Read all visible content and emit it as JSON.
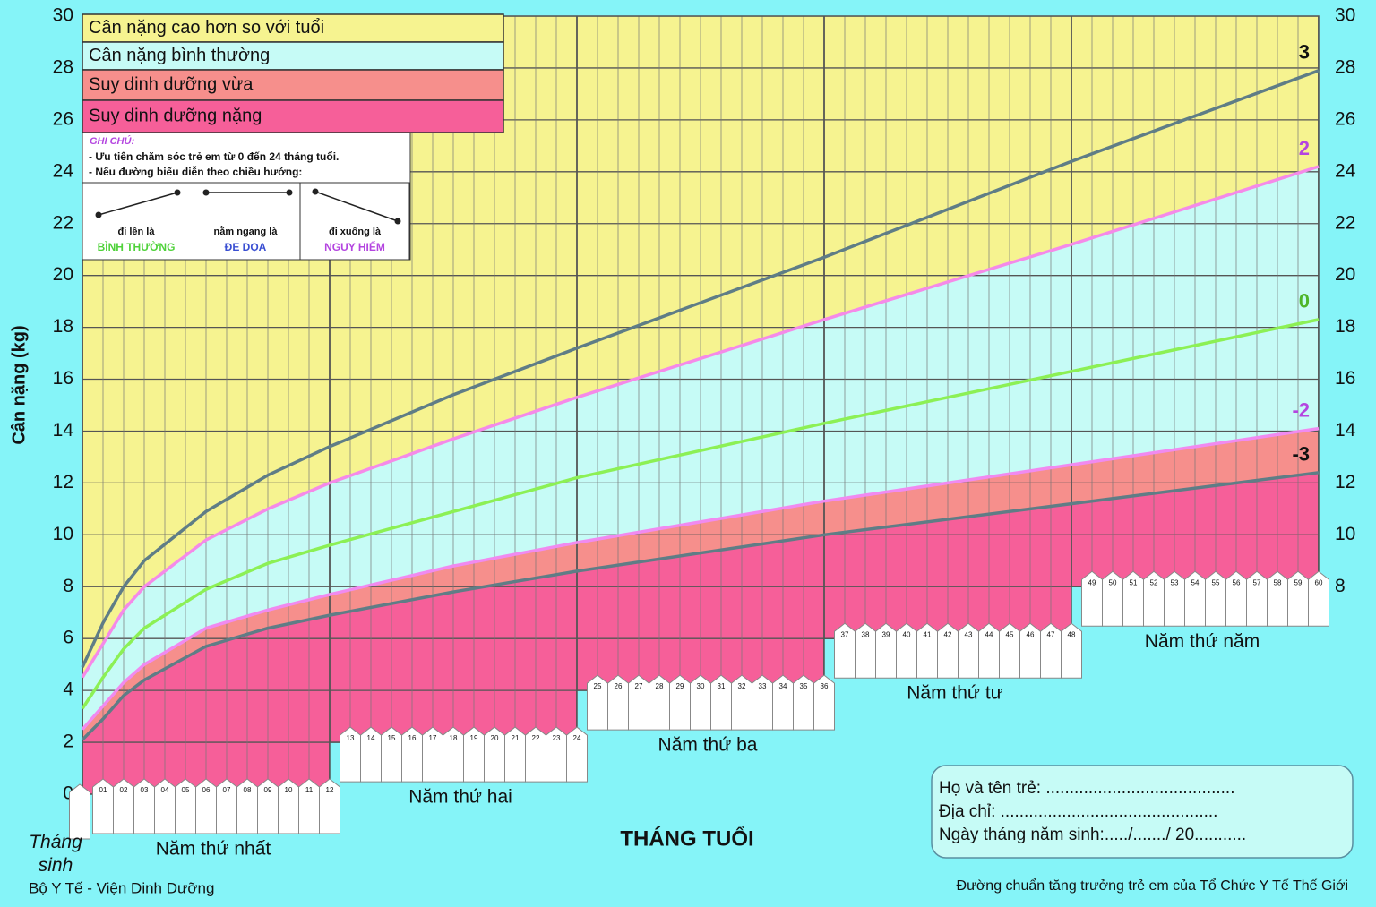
{
  "chart_data": {
    "type": "line",
    "y_label": "Cân nặng (kg)",
    "x_label": "THÁNG TUỔI",
    "birth_label": "Tháng sinh",
    "x": [
      0,
      1,
      2,
      3,
      6,
      9,
      12,
      18,
      24,
      36,
      48,
      60
    ],
    "series": [
      {
        "name": "3",
        "color": "#5f7d86",
        "label_color": "#111111",
        "values": [
          4.9,
          6.6,
          8.0,
          9.0,
          10.9,
          12.3,
          13.4,
          15.4,
          17.2,
          20.7,
          24.4,
          27.9
        ]
      },
      {
        "name": "2",
        "color": "#f58ae8",
        "label_color": "#b445e0",
        "values": [
          4.5,
          5.8,
          7.1,
          8.0,
          9.8,
          11.0,
          12.0,
          13.7,
          15.3,
          18.3,
          21.2,
          24.2
        ]
      },
      {
        "name": "0",
        "color": "#8cf055",
        "label_color": "#4fb52a",
        "values": [
          3.3,
          4.5,
          5.6,
          6.4,
          7.9,
          8.9,
          9.6,
          10.9,
          12.2,
          14.3,
          16.3,
          18.3
        ]
      },
      {
        "name": "-2",
        "color": "#f08af0",
        "label_color": "#b445e0",
        "values": [
          2.5,
          3.4,
          4.3,
          5.0,
          6.4,
          7.1,
          7.7,
          8.8,
          9.7,
          11.3,
          12.7,
          14.1
        ]
      },
      {
        "name": "-3",
        "color": "#5f7d86",
        "label_color": "#111111",
        "values": [
          2.1,
          2.9,
          3.8,
          4.4,
          5.7,
          6.4,
          6.9,
          7.8,
          8.6,
          10.0,
          11.2,
          12.4
        ]
      }
    ],
    "xlim": [
      0,
      60
    ],
    "xticks": [
      0,
      12,
      24,
      36,
      48,
      60
    ],
    "ylim": [
      0,
      30
    ],
    "yticks": [
      0,
      2,
      4,
      6,
      8,
      10,
      12,
      14,
      16,
      18,
      20,
      22,
      24,
      26,
      28,
      30
    ],
    "y2lim": [
      0,
      30
    ],
    "y2ticks": [
      8,
      10,
      12,
      14,
      16,
      18,
      20,
      22,
      24,
      26,
      28,
      30
    ],
    "grid": true,
    "zones": [
      {
        "name": "Cân nặng cao hơn so với tuổi",
        "color": "#f6f390"
      },
      {
        "name": "Cân nặng bình thường",
        "color": "#c6fbf6"
      },
      {
        "name": "Suy dinh dưỡng vừa",
        "color": "#f68f8c"
      },
      {
        "name": "Suy dinh dưỡng nặng",
        "color": "#f65f99"
      }
    ],
    "years": [
      {
        "label": "Năm thứ nhất",
        "base": 0
      },
      {
        "label": "Năm thứ hai",
        "base": 2
      },
      {
        "label": "Năm thứ ba",
        "base": 4
      },
      {
        "label": "Năm thứ tư",
        "base": 6
      },
      {
        "label": "Năm thứ năm",
        "base": 8
      }
    ],
    "month_labels": [
      "01",
      "02",
      "03",
      "04",
      "05",
      "06",
      "07",
      "08",
      "09",
      "10",
      "11",
      "12",
      "13",
      "14",
      "15",
      "16",
      "17",
      "18",
      "19",
      "20",
      "21",
      "22",
      "23",
      "24",
      "25",
      "26",
      "27",
      "28",
      "29",
      "30",
      "31",
      "32",
      "33",
      "34",
      "35",
      "36",
      "37",
      "38",
      "39",
      "40",
      "41",
      "42",
      "43",
      "44",
      "45",
      "46",
      "47",
      "48",
      "49",
      "50",
      "51",
      "52",
      "53",
      "54",
      "55",
      "56",
      "57",
      "58",
      "59",
      "60"
    ],
    "note": {
      "title": "GHI CHÚ:",
      "lines": [
        "- Ưu tiên chăm sóc trẻ em từ 0 đến 24 tháng tuổi.",
        "- Nếu đường biểu diễn theo chiều hướng:"
      ],
      "items": [
        {
          "text": "đi lên là",
          "status": "BÌNH THƯỜNG",
          "color": "#4fd23a"
        },
        {
          "text": "nằm ngang là",
          "status": "ĐE DỌA",
          "color": "#3a4fd2"
        },
        {
          "text": "đi xuống là",
          "status": "NGUY HIỂM",
          "color": "#b445e0"
        }
      ]
    },
    "form": [
      "Họ và tên trẻ: ........................................",
      "Địa chỉ: ..............................................",
      "Ngày tháng năm sinh:...../......./ 20..........."
    ],
    "source_left": "Bộ Y Tế - Viện Dinh Dưỡng",
    "source_right": "Đường chuẩn tăng trưởng trẻ em của Tổ Chức Y Tế Thế Giới"
  }
}
